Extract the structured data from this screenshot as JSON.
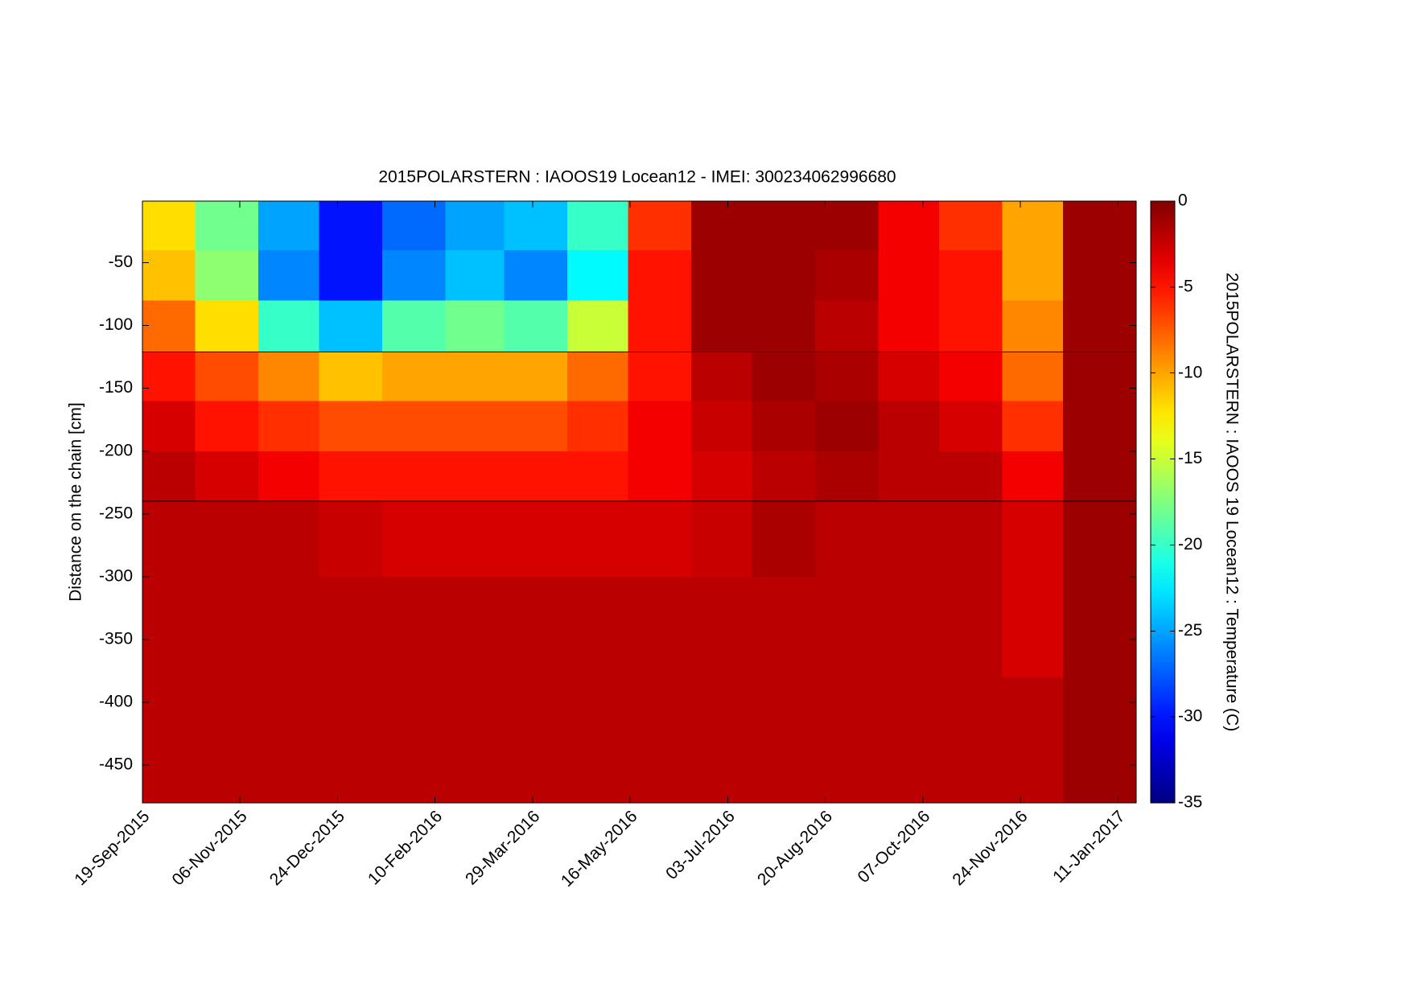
{
  "chart_data": {
    "type": "heatmap",
    "title": "2015POLARSTERN : IAOOS19  Locean12 - IMEI: 300234062996680",
    "y_label": "Distance on the chain [cm]",
    "colorbar_label": "2015POLARSTERN : IAOOS 19  Locean12 : Temperature (C)",
    "colormap": "jet",
    "xlim": [
      "2015-09-19",
      "2017-01-20"
    ],
    "xticks": [
      {
        "value": "2015-09-19",
        "label": "19-Sep-2015"
      },
      {
        "value": "2015-11-06",
        "label": "06-Nov-2015"
      },
      {
        "value": "2015-12-24",
        "label": "24-Dec-2015"
      },
      {
        "value": "2016-02-10",
        "label": "10-Feb-2016"
      },
      {
        "value": "2016-03-29",
        "label": "29-Mar-2016"
      },
      {
        "value": "2016-05-16",
        "label": "16-May-2016"
      },
      {
        "value": "2016-07-03",
        "label": "03-Jul-2016"
      },
      {
        "value": "2016-08-20",
        "label": "20-Aug-2016"
      },
      {
        "value": "2016-10-07",
        "label": "07-Oct-2016"
      },
      {
        "value": "2016-11-24",
        "label": "24-Nov-2016"
      },
      {
        "value": "2017-01-11",
        "label": "11-Jan-2017"
      }
    ],
    "ylim": [
      -480,
      -1
    ],
    "yticks": [
      -50,
      -100,
      -150,
      -200,
      -250,
      -300,
      -350,
      -400,
      -450
    ],
    "zlim": [
      -35,
      0
    ],
    "zticks": [
      0,
      -5,
      -10,
      -15,
      -20,
      -25,
      -30,
      -35
    ],
    "hlines": [
      -121,
      -240
    ],
    "x_edges": [
      "2015-09-19",
      "2015-10-15",
      "2015-11-15",
      "2015-12-15",
      "2016-01-15",
      "2016-02-15",
      "2016-03-15",
      "2016-04-15",
      "2016-05-15",
      "2016-06-15",
      "2016-07-15",
      "2016-08-15",
      "2016-09-15",
      "2016-10-15",
      "2016-11-15",
      "2016-12-15",
      "2017-01-20"
    ],
    "y_edges": [
      -1,
      -40,
      -80,
      -121,
      -160,
      -200,
      -240,
      -300,
      -380,
      -480
    ],
    "z": [
      [
        -12,
        -18,
        -25,
        -30,
        -27,
        -25,
        -24,
        -20,
        -6,
        -1,
        -1,
        -1,
        -4,
        -6,
        -10,
        -1
      ],
      [
        -11,
        -17,
        -26,
        -30,
        -26,
        -24,
        -26,
        -22,
        -5,
        -1,
        -1,
        -1.5,
        -4,
        -5,
        -10,
        -1
      ],
      [
        -8,
        -12,
        -20,
        -24,
        -19,
        -18,
        -19,
        -15,
        -5,
        -1,
        -1,
        -2,
        -4,
        -5,
        -9,
        -1
      ],
      [
        -5,
        -7,
        -9,
        -11,
        -10,
        -10,
        -10,
        -8,
        -5,
        -2,
        -1,
        -1.5,
        -3,
        -4,
        -8,
        -1
      ],
      [
        -3,
        -5,
        -6,
        -7,
        -7,
        -7,
        -7,
        -6,
        -4,
        -2.5,
        -1.5,
        -1,
        -2,
        -3,
        -6,
        -1
      ],
      [
        -2,
        -3,
        -4,
        -5,
        -5,
        -5,
        -5,
        -5,
        -4,
        -3,
        -2,
        -1.5,
        -2,
        -2,
        -4,
        -1
      ],
      [
        -2,
        -2,
        -2,
        -2.5,
        -3,
        -3,
        -3,
        -3,
        -3,
        -2.5,
        -1.5,
        -2,
        -2,
        -2,
        -3,
        -1
      ],
      [
        -2,
        -2,
        -2,
        -2,
        -2,
        -2,
        -2,
        -2,
        -2,
        -2,
        -2,
        -2,
        -2,
        -2,
        -3,
        -1
      ],
      [
        -2,
        -2,
        -2,
        -2,
        -2,
        -2,
        -2,
        -2,
        -2,
        -2,
        -2,
        -2,
        -2,
        -2,
        -2,
        -1
      ]
    ]
  }
}
